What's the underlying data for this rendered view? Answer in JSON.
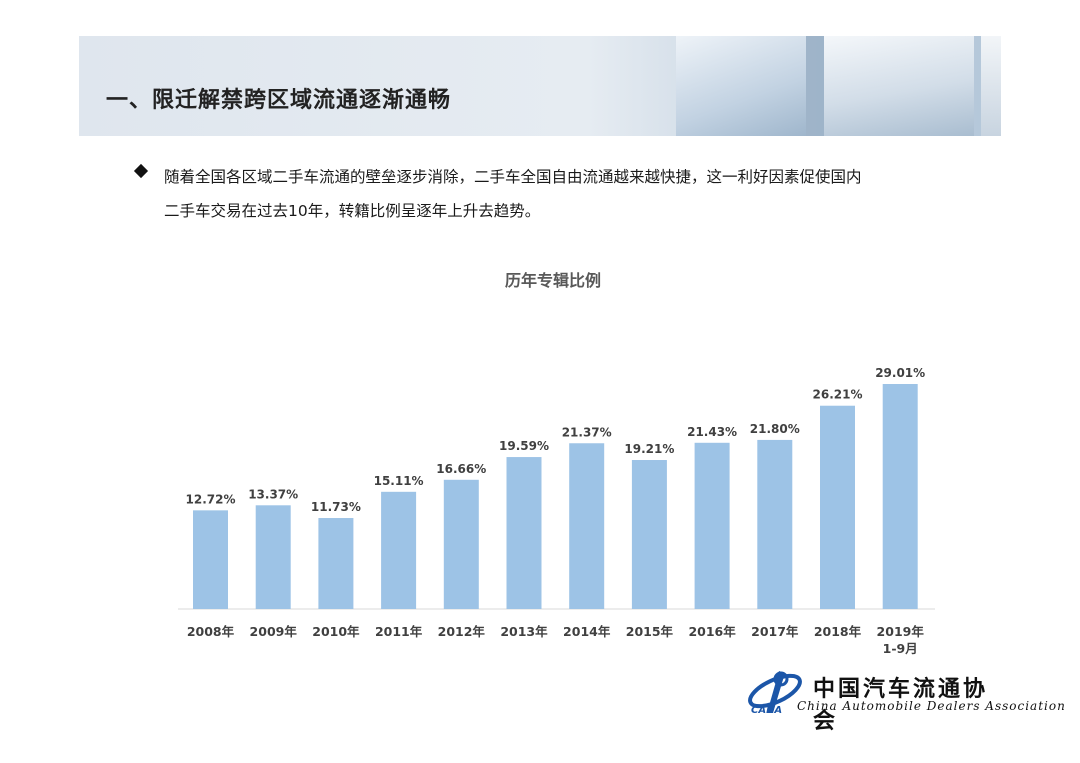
{
  "header": {
    "title": "一、限迁解禁跨区域流通逐渐通畅"
  },
  "bullet": {
    "icon": "diamond-bullet-icon",
    "text_line1": "随着全国各区域二手车流通的壁垒逐步消除，二手车全国自由流通越来越快捷，这一利好因素促使国内",
    "text_line2": "二手车交易在过去10年，转籍比例呈逐年上升去趋势。"
  },
  "logo": {
    "icon": "cada-logo-icon",
    "abbr": "CADA",
    "name_cn": "中国汽车流通协会",
    "name_en": "China Automobile Dealers Association"
  },
  "chart_data": {
    "type": "bar",
    "title": "历年专辑比例",
    "categories": [
      "2008年",
      "2009年",
      "2010年",
      "2011年",
      "2012年",
      "2013年",
      "2014年",
      "2015年",
      "2016年",
      "2017年",
      "2018年",
      "2019年\n1-9月"
    ],
    "values": [
      12.72,
      13.37,
      11.73,
      15.11,
      16.66,
      19.59,
      21.37,
      19.21,
      21.43,
      21.8,
      26.21,
      29.01
    ],
    "value_labels": [
      "12.72%",
      "13.37%",
      "11.73%",
      "15.11%",
      "16.66%",
      "19.59%",
      "21.37%",
      "19.21%",
      "21.43%",
      "21.80%",
      "26.21%",
      "29.01%"
    ],
    "ylim": [
      0,
      29.01
    ],
    "grid": false,
    "bar_color": "#9dc3e6",
    "label_color": "#404040"
  }
}
